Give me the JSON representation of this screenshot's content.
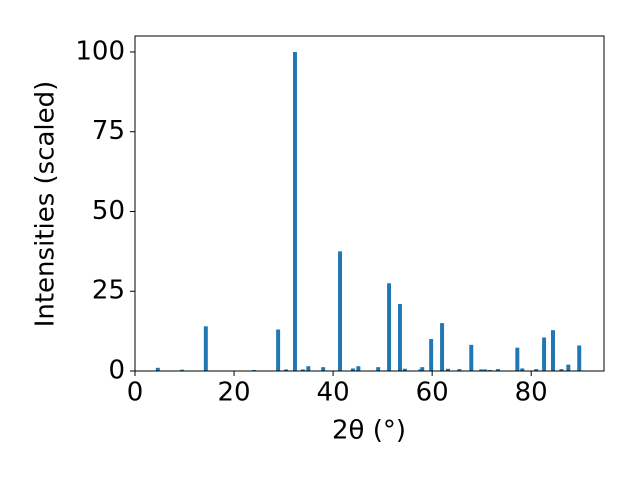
{
  "chart_data": {
    "type": "bar",
    "x_label": "2θ (°)",
    "y_label": "Intensities (scaled)",
    "x": [
      4.6,
      9.5,
      14.3,
      24.0,
      28.9,
      30.5,
      32.3,
      33.9,
      35.0,
      38.0,
      41.4,
      44.0,
      45.1,
      49.1,
      51.3,
      53.5,
      54.5,
      57.6,
      58.0,
      59.8,
      62.0,
      63.2,
      65.5,
      67.9,
      69.9,
      70.7,
      71.7,
      73.3,
      77.2,
      78.2,
      81.0,
      82.6,
      84.4,
      86.1,
      87.5,
      89.7
    ],
    "values": [
      1,
      0.4,
      14,
      0.3,
      13,
      0.5,
      100,
      0.5,
      1.5,
      1.2,
      37.5,
      0.8,
      1.5,
      1.2,
      27.5,
      21,
      0.7,
      0.5,
      1.2,
      10,
      15,
      0.7,
      0.6,
      8.2,
      0.5,
      0.5,
      0.3,
      0.6,
      7.3,
      0.8,
      0.6,
      10.5,
      12.8,
      0.6,
      2,
      8
    ],
    "color": "#1f77b4",
    "xlim": [
      0,
      94.7
    ],
    "ylim": [
      0,
      105
    ],
    "xticks": [
      0,
      20,
      40,
      60,
      80
    ],
    "yticks": [
      0,
      25,
      50,
      75,
      100
    ]
  }
}
